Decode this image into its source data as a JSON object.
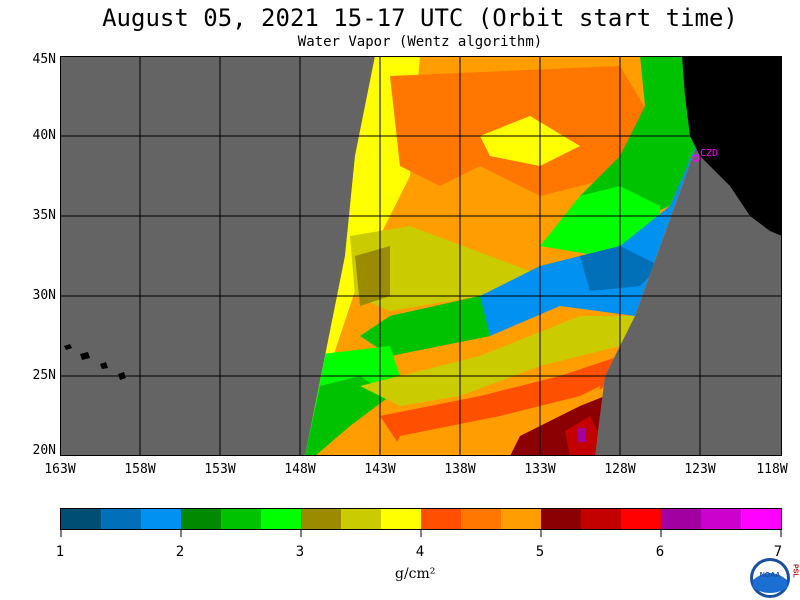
{
  "title": "August 05, 2021  15-17 UTC  (Orbit start time)",
  "subtitle": "Water Vapor (Wentz algorithm)",
  "station_label": "CZD",
  "lat_labels": [
    "45N",
    "40N",
    "35N",
    "30N",
    "25N",
    "20N"
  ],
  "lon_labels": [
    "163W",
    "158W",
    "153W",
    "148W",
    "143W",
    "138W",
    "133W",
    "128W",
    "123W",
    "118W"
  ],
  "colorbar": {
    "ticks": [
      "1",
      "2",
      "3",
      "4",
      "5",
      "6",
      "7"
    ],
    "units": "g/cm²",
    "colors": [
      "#014e73",
      "#0170b9",
      "#0191f0",
      "#018a01",
      "#01c201",
      "#01ff01",
      "#9b8b01",
      "#cbcb01",
      "#ffff01",
      "#ff5001",
      "#ff7601",
      "#ff9d01",
      "#8b0101",
      "#c40101",
      "#ff0101",
      "#a001a0",
      "#cd01cd",
      "#ff01ff"
    ]
  },
  "map_colors": {
    "background": "#646464",
    "land": "#000000",
    "grid": "#000000",
    "station": "#ff00ff"
  },
  "logo": {
    "name": "NOAA",
    "side_letters": "PSL"
  }
}
